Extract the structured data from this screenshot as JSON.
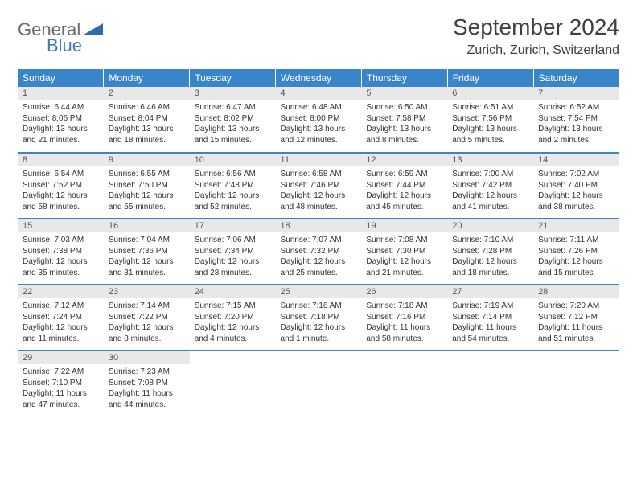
{
  "logo": {
    "word1": "General",
    "word2": "Blue"
  },
  "title": "September 2024",
  "location": "Zurich, Zurich, Switzerland",
  "colors": {
    "header_bg": "#3a85c9",
    "header_text": "#ffffff",
    "daynum_bg": "#e8e8e8",
    "border": "#3a85c9",
    "logo_gray": "#6a6a6a",
    "logo_blue": "#3a7bbf"
  },
  "weekdays": [
    "Sunday",
    "Monday",
    "Tuesday",
    "Wednesday",
    "Thursday",
    "Friday",
    "Saturday"
  ],
  "weeks": [
    [
      {
        "n": "1",
        "sr": "Sunrise: 6:44 AM",
        "ss": "Sunset: 8:06 PM",
        "dl": "Daylight: 13 hours and 21 minutes."
      },
      {
        "n": "2",
        "sr": "Sunrise: 6:46 AM",
        "ss": "Sunset: 8:04 PM",
        "dl": "Daylight: 13 hours and 18 minutes."
      },
      {
        "n": "3",
        "sr": "Sunrise: 6:47 AM",
        "ss": "Sunset: 8:02 PM",
        "dl": "Daylight: 13 hours and 15 minutes."
      },
      {
        "n": "4",
        "sr": "Sunrise: 6:48 AM",
        "ss": "Sunset: 8:00 PM",
        "dl": "Daylight: 13 hours and 12 minutes."
      },
      {
        "n": "5",
        "sr": "Sunrise: 6:50 AM",
        "ss": "Sunset: 7:58 PM",
        "dl": "Daylight: 13 hours and 8 minutes."
      },
      {
        "n": "6",
        "sr": "Sunrise: 6:51 AM",
        "ss": "Sunset: 7:56 PM",
        "dl": "Daylight: 13 hours and 5 minutes."
      },
      {
        "n": "7",
        "sr": "Sunrise: 6:52 AM",
        "ss": "Sunset: 7:54 PM",
        "dl": "Daylight: 13 hours and 2 minutes."
      }
    ],
    [
      {
        "n": "8",
        "sr": "Sunrise: 6:54 AM",
        "ss": "Sunset: 7:52 PM",
        "dl": "Daylight: 12 hours and 58 minutes."
      },
      {
        "n": "9",
        "sr": "Sunrise: 6:55 AM",
        "ss": "Sunset: 7:50 PM",
        "dl": "Daylight: 12 hours and 55 minutes."
      },
      {
        "n": "10",
        "sr": "Sunrise: 6:56 AM",
        "ss": "Sunset: 7:48 PM",
        "dl": "Daylight: 12 hours and 52 minutes."
      },
      {
        "n": "11",
        "sr": "Sunrise: 6:58 AM",
        "ss": "Sunset: 7:46 PM",
        "dl": "Daylight: 12 hours and 48 minutes."
      },
      {
        "n": "12",
        "sr": "Sunrise: 6:59 AM",
        "ss": "Sunset: 7:44 PM",
        "dl": "Daylight: 12 hours and 45 minutes."
      },
      {
        "n": "13",
        "sr": "Sunrise: 7:00 AM",
        "ss": "Sunset: 7:42 PM",
        "dl": "Daylight: 12 hours and 41 minutes."
      },
      {
        "n": "14",
        "sr": "Sunrise: 7:02 AM",
        "ss": "Sunset: 7:40 PM",
        "dl": "Daylight: 12 hours and 38 minutes."
      }
    ],
    [
      {
        "n": "15",
        "sr": "Sunrise: 7:03 AM",
        "ss": "Sunset: 7:38 PM",
        "dl": "Daylight: 12 hours and 35 minutes."
      },
      {
        "n": "16",
        "sr": "Sunrise: 7:04 AM",
        "ss": "Sunset: 7:36 PM",
        "dl": "Daylight: 12 hours and 31 minutes."
      },
      {
        "n": "17",
        "sr": "Sunrise: 7:06 AM",
        "ss": "Sunset: 7:34 PM",
        "dl": "Daylight: 12 hours and 28 minutes."
      },
      {
        "n": "18",
        "sr": "Sunrise: 7:07 AM",
        "ss": "Sunset: 7:32 PM",
        "dl": "Daylight: 12 hours and 25 minutes."
      },
      {
        "n": "19",
        "sr": "Sunrise: 7:08 AM",
        "ss": "Sunset: 7:30 PM",
        "dl": "Daylight: 12 hours and 21 minutes."
      },
      {
        "n": "20",
        "sr": "Sunrise: 7:10 AM",
        "ss": "Sunset: 7:28 PM",
        "dl": "Daylight: 12 hours and 18 minutes."
      },
      {
        "n": "21",
        "sr": "Sunrise: 7:11 AM",
        "ss": "Sunset: 7:26 PM",
        "dl": "Daylight: 12 hours and 15 minutes."
      }
    ],
    [
      {
        "n": "22",
        "sr": "Sunrise: 7:12 AM",
        "ss": "Sunset: 7:24 PM",
        "dl": "Daylight: 12 hours and 11 minutes."
      },
      {
        "n": "23",
        "sr": "Sunrise: 7:14 AM",
        "ss": "Sunset: 7:22 PM",
        "dl": "Daylight: 12 hours and 8 minutes."
      },
      {
        "n": "24",
        "sr": "Sunrise: 7:15 AM",
        "ss": "Sunset: 7:20 PM",
        "dl": "Daylight: 12 hours and 4 minutes."
      },
      {
        "n": "25",
        "sr": "Sunrise: 7:16 AM",
        "ss": "Sunset: 7:18 PM",
        "dl": "Daylight: 12 hours and 1 minute."
      },
      {
        "n": "26",
        "sr": "Sunrise: 7:18 AM",
        "ss": "Sunset: 7:16 PM",
        "dl": "Daylight: 11 hours and 58 minutes."
      },
      {
        "n": "27",
        "sr": "Sunrise: 7:19 AM",
        "ss": "Sunset: 7:14 PM",
        "dl": "Daylight: 11 hours and 54 minutes."
      },
      {
        "n": "28",
        "sr": "Sunrise: 7:20 AM",
        "ss": "Sunset: 7:12 PM",
        "dl": "Daylight: 11 hours and 51 minutes."
      }
    ],
    [
      {
        "n": "29",
        "sr": "Sunrise: 7:22 AM",
        "ss": "Sunset: 7:10 PM",
        "dl": "Daylight: 11 hours and 47 minutes."
      },
      {
        "n": "30",
        "sr": "Sunrise: 7:23 AM",
        "ss": "Sunset: 7:08 PM",
        "dl": "Daylight: 11 hours and 44 minutes."
      },
      null,
      null,
      null,
      null,
      null
    ]
  ]
}
